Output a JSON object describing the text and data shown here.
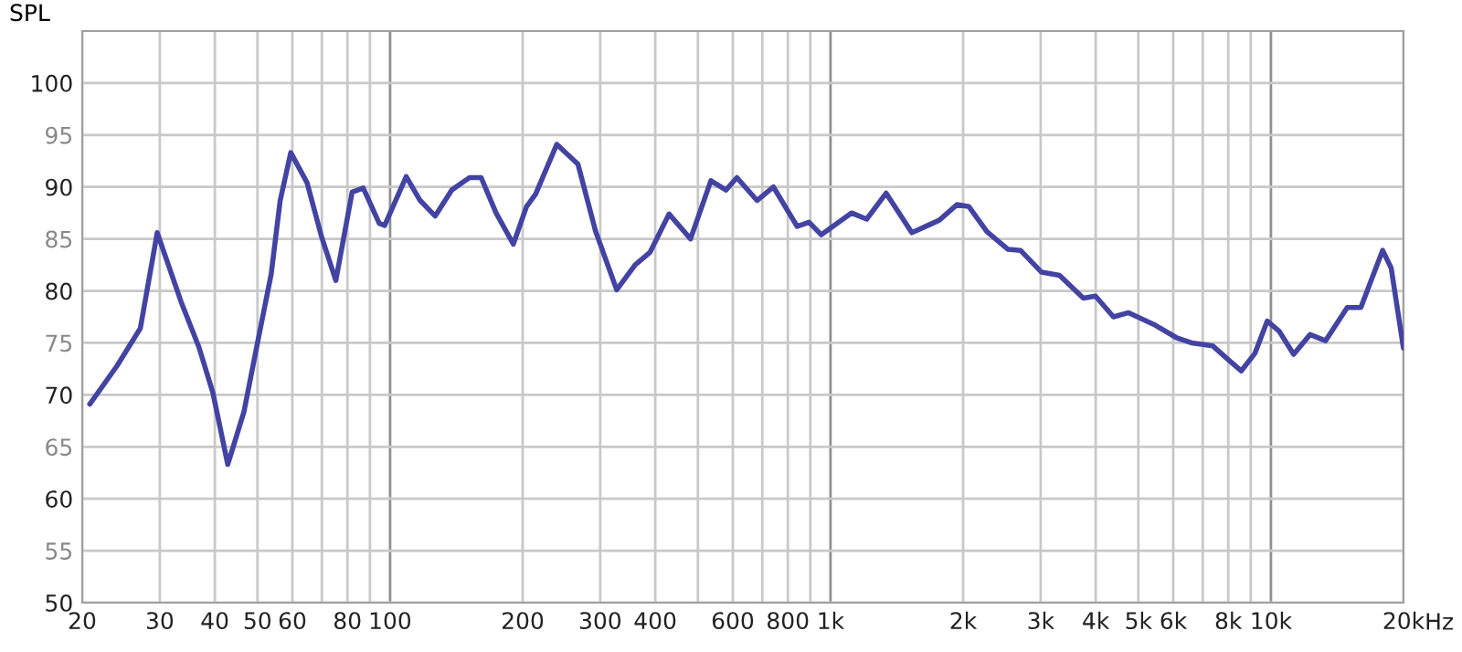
{
  "chart_data": {
    "type": "line",
    "ylabel": "SPL",
    "log": "x",
    "grid": true,
    "marker": "none",
    "line_style": "solid",
    "xlim": [
      20,
      20000
    ],
    "ylim": [
      50,
      105
    ],
    "xticks": [
      20,
      30,
      40,
      50,
      60,
      {
        "value": 70,
        "label": null
      },
      80,
      {
        "value": 90,
        "label": null
      },
      100,
      200,
      300,
      400,
      {
        "value": 500,
        "label": null
      },
      600,
      {
        "value": 700,
        "label": null
      },
      800,
      {
        "value": 900,
        "label": null
      },
      {
        "value": 1000,
        "label": "1k"
      },
      {
        "value": 2000,
        "label": "2k"
      },
      {
        "value": 3000,
        "label": "3k"
      },
      {
        "value": 4000,
        "label": "4k"
      },
      {
        "value": 5000,
        "label": "5k"
      },
      {
        "value": 6000,
        "label": "6k"
      },
      {
        "value": 7000,
        "label": null
      },
      {
        "value": 8000,
        "label": "8k"
      },
      {
        "value": 9000,
        "label": null
      },
      {
        "value": 10000,
        "label": "10k"
      },
      {
        "value": 20000,
        "label": "20k"
      }
    ],
    "xlabel": "Hz",
    "yticks": [
      50,
      55,
      60,
      65,
      70,
      75,
      80,
      85,
      90,
      95,
      100
    ],
    "series": [
      {
        "color": "#4343a3",
        "x": [
          20.8,
          24,
          27.1,
          29.6,
          33.5,
          36.8,
          39.6,
          42.8,
          46.6,
          50,
          53.7,
          56.3,
          59.5,
          64.8,
          69.9,
          75.3,
          82,
          86.9,
          94.5,
          97.2,
          108.8,
          117,
          126.6,
          138,
          151.5,
          161,
          174,
          190.5,
          204,
          214,
          239,
          267,
          293,
          327,
          360,
          389,
          430,
          481,
          535,
          579,
          613,
          681,
          742,
          840,
          894,
          953,
          1116,
          1208,
          1337,
          1530,
          1766,
          1937,
          2062,
          2265,
          2530,
          2700,
          3014,
          3310,
          3751,
          3996,
          4390,
          4750,
          5460,
          6100,
          6600,
          7380,
          7990,
          8560,
          9200,
          9810,
          10450,
          11260,
          12270,
          13300,
          14900,
          16000,
          17930,
          18750,
          19990
        ],
        "values": [
          69.1,
          72.8,
          76.4,
          85.6,
          79,
          74.6,
          70.2,
          63.3,
          68.4,
          75,
          81.6,
          88.7,
          93.3,
          90.4,
          85.2,
          81,
          89.5,
          89.9,
          86.5,
          86.3,
          91,
          88.7,
          87.2,
          89.7,
          90.9,
          90.9,
          87.5,
          84.5,
          88.1,
          89.3,
          94.1,
          92.2,
          85.7,
          80.1,
          82.5,
          83.7,
          87.4,
          85,
          90.6,
          89.7,
          90.9,
          88.7,
          90,
          86.2,
          86.6,
          85.4,
          87.5,
          86.9,
          89.4,
          85.6,
          86.8,
          88.3,
          88.1,
          85.7,
          84,
          83.9,
          81.8,
          81.5,
          79.3,
          79.5,
          77.5,
          77.9,
          76.7,
          75.5,
          75,
          74.7,
          73.4,
          72.3,
          74,
          77.1,
          76.1,
          73.9,
          75.8,
          75.2,
          78.4,
          78.4,
          83.9,
          82.2,
          74.5
        ]
      }
    ]
  }
}
